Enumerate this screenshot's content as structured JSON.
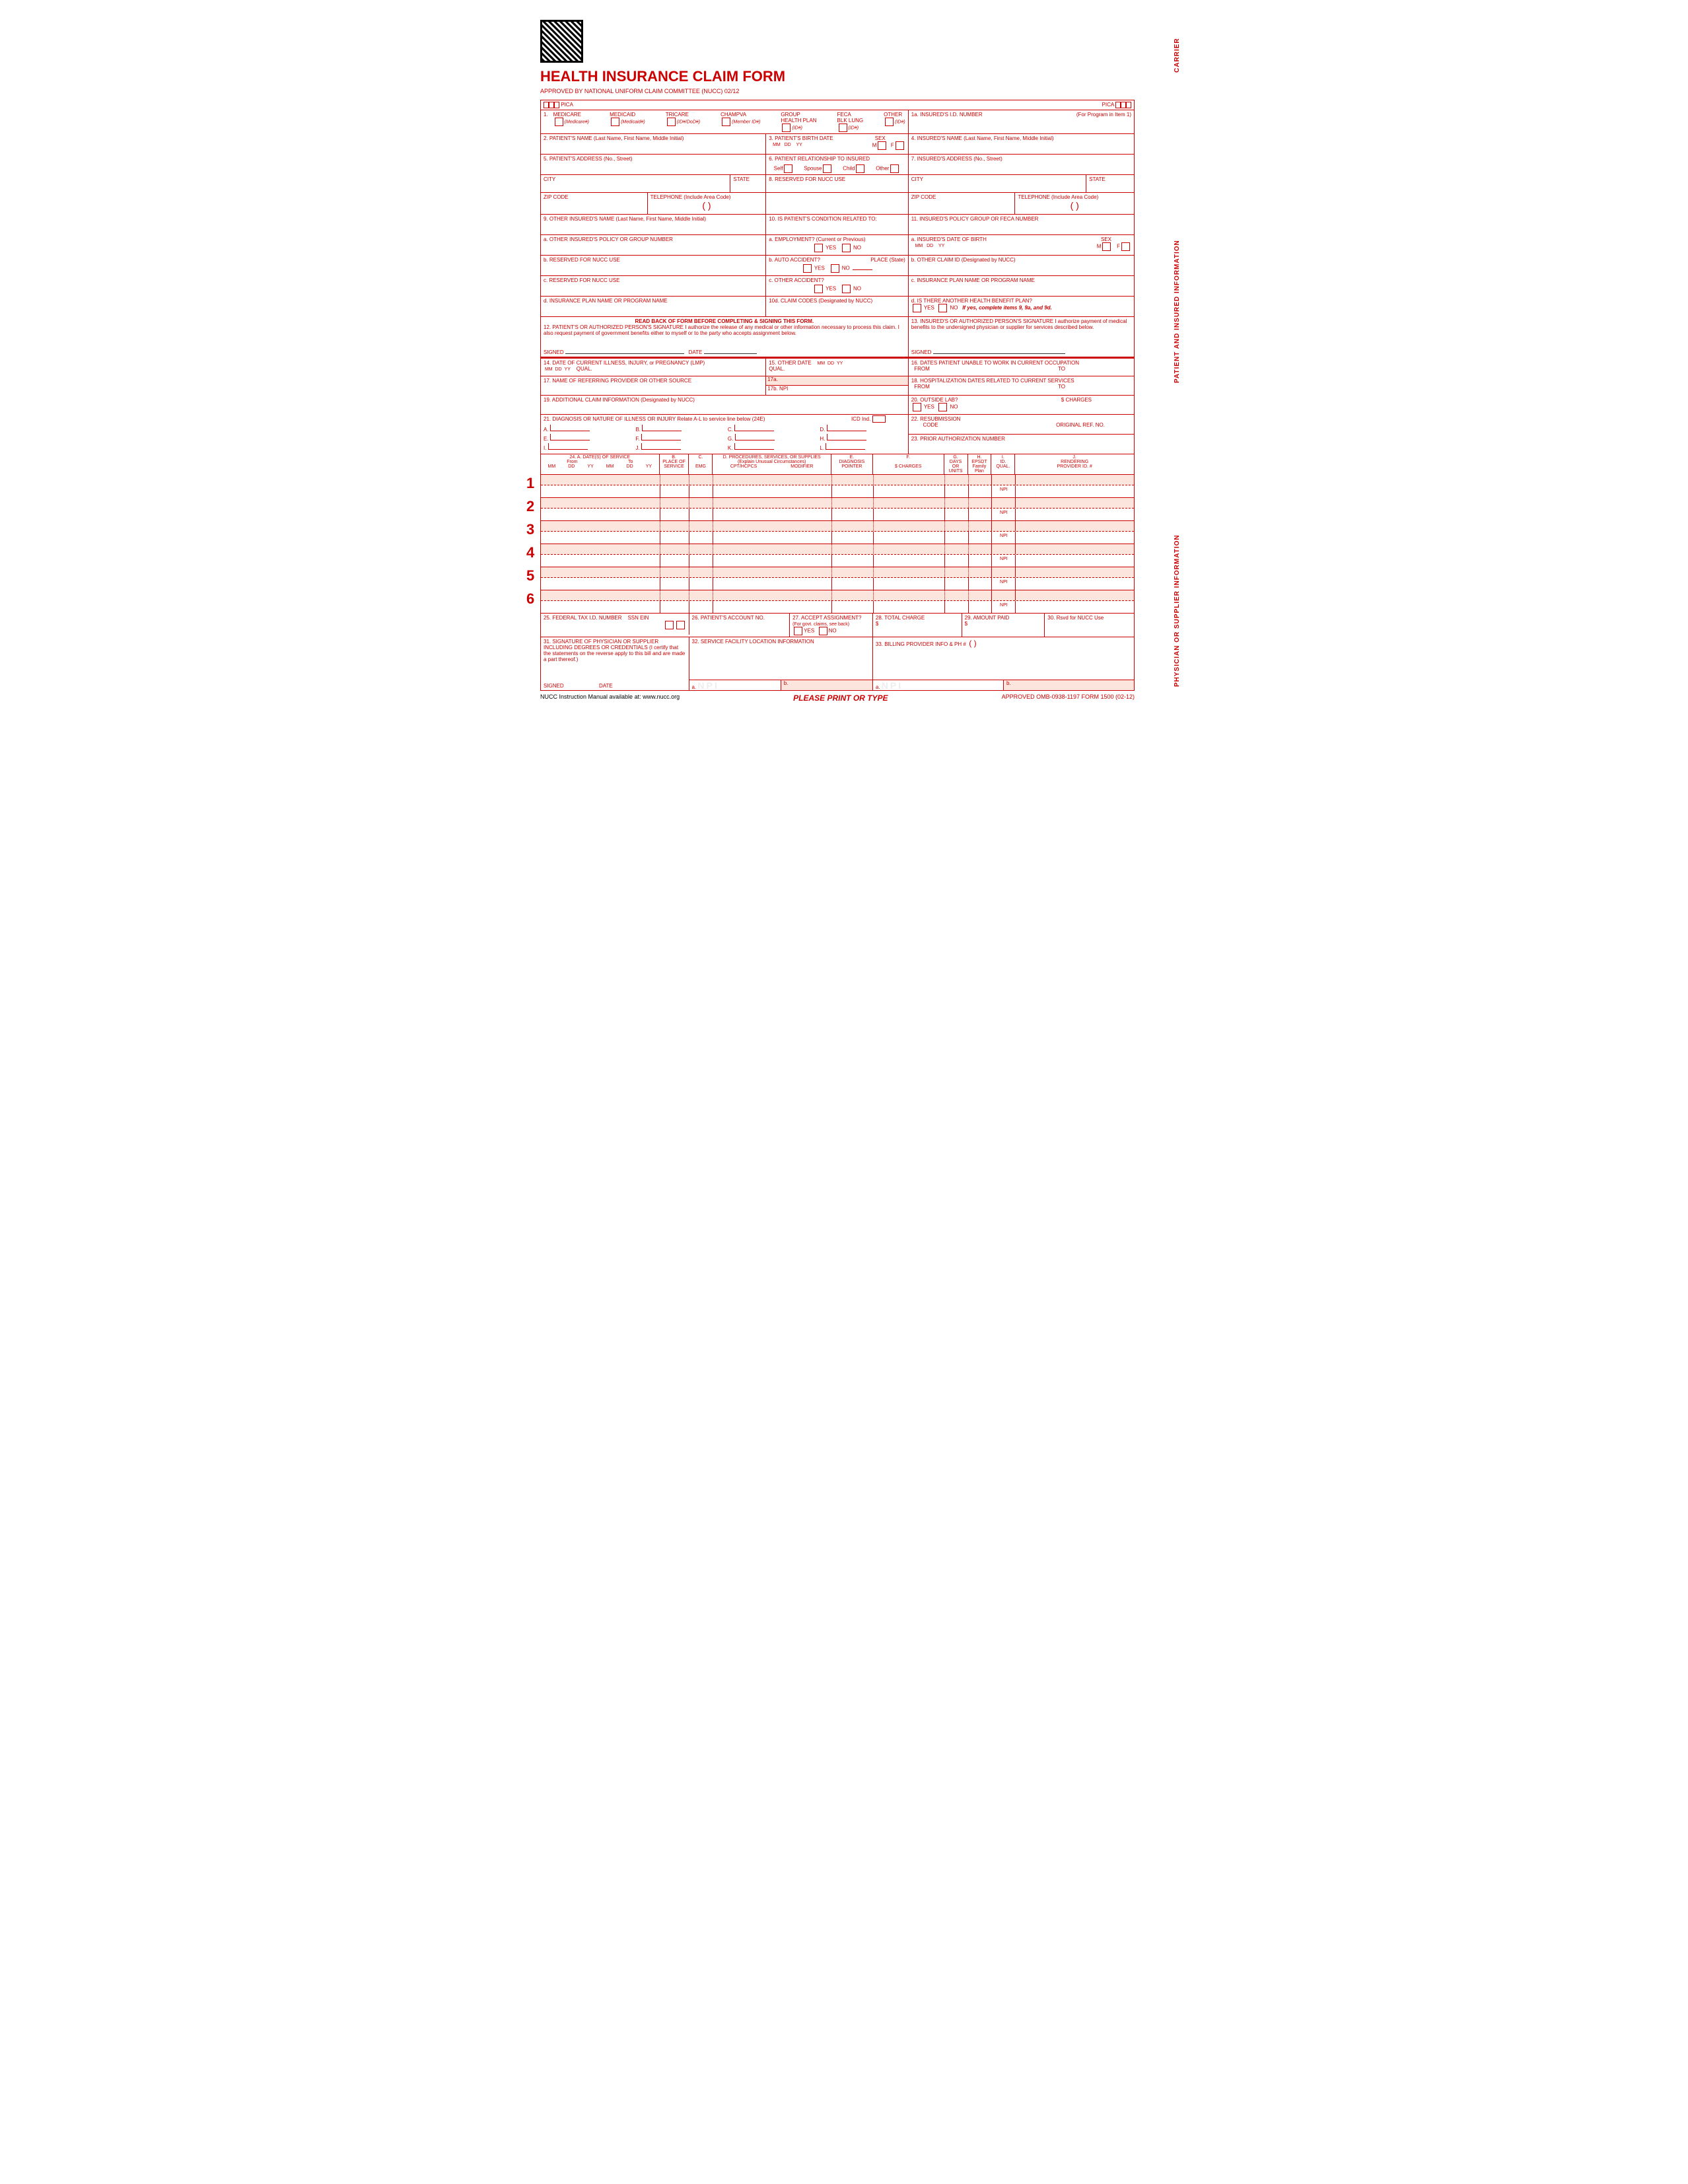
{
  "header": {
    "title": "HEALTH INSURANCE CLAIM FORM",
    "approved": "APPROVED BY NATIONAL UNIFORM CLAIM COMMITTEE (NUCC) 02/12",
    "pica": "PICA"
  },
  "sides": {
    "carrier": "CARRIER",
    "patient": "PATIENT AND INSURED INFORMATION",
    "physician": "PHYSICIAN OR SUPPLIER INFORMATION"
  },
  "box1": {
    "num": "1.",
    "medicare": "MEDICARE",
    "medicare_sub": "(Medicare#)",
    "medicaid": "MEDICAID",
    "medicaid_sub": "(Medicaid#)",
    "tricare": "TRICARE",
    "tricare_sub": "(ID#/DoD#)",
    "champva": "CHAMPVA",
    "champva_sub": "(Member ID#)",
    "group": "GROUP\nHEALTH PLAN",
    "group_sub": "(ID#)",
    "feca": "FECA\nBLK LUNG",
    "feca_sub": "(ID#)",
    "other": "OTHER",
    "other_sub": "(ID#)"
  },
  "box1a": {
    "lbl": "1a. INSURED'S I.D. NUMBER",
    "note": "(For Program in Item 1)"
  },
  "box2": "2. PATIENT'S NAME (Last Name, First Name, Middle Initial)",
  "box3": {
    "lbl": "3. PATIENT'S BIRTH DATE",
    "mm": "MM",
    "dd": "DD",
    "yy": "YY",
    "sex": "SEX",
    "m": "M",
    "f": "F"
  },
  "box4": "4. INSURED'S NAME (Last Name, First Name, Middle Initial)",
  "box5": "5. PATIENT'S ADDRESS (No., Street)",
  "box6": {
    "lbl": "6. PATIENT RELATIONSHIP TO INSURED",
    "self": "Self",
    "spouse": "Spouse",
    "child": "Child",
    "other": "Other"
  },
  "box7": "7. INSURED'S ADDRESS (No., Street)",
  "city": "CITY",
  "state": "STATE",
  "zip": "ZIP CODE",
  "phone": "TELEPHONE (Include Area Code)",
  "box8": "8. RESERVED FOR NUCC USE",
  "box9": "9. OTHER INSURED'S NAME (Last Name, First Name, Middle Initial)",
  "box9a": "a. OTHER INSURED'S POLICY OR GROUP NUMBER",
  "box9b": "b. RESERVED FOR NUCC USE",
  "box9c": "c. RESERVED FOR NUCC USE",
  "box9d": "d. INSURANCE PLAN NAME OR PROGRAM NAME",
  "box10": "10. IS PATIENT'S CONDITION RELATED TO:",
  "box10a": "a. EMPLOYMENT? (Current or Previous)",
  "box10b": "b. AUTO ACCIDENT?",
  "box10c": "c. OTHER ACCIDENT?",
  "box10d": "10d. CLAIM CODES (Designated by NUCC)",
  "place": "PLACE (State)",
  "yes": "YES",
  "no": "NO",
  "box11": "11. INSURED'S POLICY GROUP OR FECA NUMBER",
  "box11a": "a. INSURED'S DATE OF BIRTH",
  "box11b": "b. OTHER CLAIM ID (Designated by NUCC)",
  "box11c": "c. INSURANCE PLAN NAME OR PROGRAM NAME",
  "box11d": {
    "lbl": "d. IS THERE ANOTHER HEALTH BENEFIT PLAN?",
    "note": "If yes, complete items 9, 9a, and 9d."
  },
  "box12hdr": "READ BACK OF FORM BEFORE COMPLETING & SIGNING THIS FORM.",
  "box12": "12. PATIENT'S OR AUTHORIZED PERSON'S SIGNATURE  I authorize the release of any medical or other information necessary to process this claim. I also request payment of government benefits either to myself or to the party who accepts assignment below.",
  "box13": "13. INSURED'S OR AUTHORIZED PERSON'S SIGNATURE I authorize payment of medical benefits to the undersigned physician or supplier for services described below.",
  "signed": "SIGNED",
  "date": "DATE",
  "box14": "14. DATE OF CURRENT ILLNESS, INJURY, or PREGNANCY (LMP)",
  "qual": "QUAL.",
  "box15": "15. OTHER DATE",
  "box16": "16. DATES PATIENT UNABLE TO WORK IN CURRENT OCCUPATION",
  "from": "FROM",
  "to": "TO",
  "box17": "17. NAME OF REFERRING PROVIDER OR OTHER SOURCE",
  "box17a": "17a.",
  "box17b": "17b.",
  "npi": "NPI",
  "box18": "18. HOSPITALIZATION DATES RELATED TO CURRENT SERVICES",
  "box19": "19. ADDITIONAL CLAIM INFORMATION (Designated by NUCC)",
  "box20": "20. OUTSIDE LAB?",
  "charges": "$ CHARGES",
  "box21": "21. DIAGNOSIS OR NATURE OF ILLNESS OR INJURY  Relate A-L to service line below (24E)",
  "icd": "ICD Ind.",
  "dx": [
    "A.",
    "B.",
    "C.",
    "D.",
    "E.",
    "F.",
    "G.",
    "H.",
    "I.",
    "J.",
    "K.",
    "L."
  ],
  "box22": "22. RESUBMISSION\n        CODE",
  "origref": "ORIGINAL REF. NO.",
  "box23": "23. PRIOR AUTHORIZATION NUMBER",
  "box24": {
    "a": "24. A.       DATE(S) OF SERVICE",
    "from": "From",
    "to": "To",
    "b": "B.\nPLACE OF\nSERVICE",
    "c": "C.\n\nEMG",
    "d": "D.  PROCEDURES, SERVICES, OR SUPPLIES\n(Explain Unusual Circumstances)",
    "cpt": "CPT/HCPCS",
    "mod": "MODIFIER",
    "e": "E.\nDIAGNOSIS\nPOINTER",
    "f": "F.\n\n$ CHARGES",
    "g": "G.\nDAYS\nOR\nUNITS",
    "h": "H.\nEPSDT\nFamily\nPlan",
    "i": "I.\nID.\nQUAL.",
    "j": "J.\nRENDERING\nPROVIDER ID. #",
    "mm": "MM",
    "dd": "DD",
    "yy": "YY"
  },
  "box25": "25. FEDERAL TAX I.D. NUMBER",
  "ssn": "SSN",
  "ein": "EIN",
  "box26": "26. PATIENT'S ACCOUNT NO.",
  "box27": "27. ACCEPT ASSIGNMENT?",
  "box27sub": "(For govt. claims, see back)",
  "box28": "28. TOTAL CHARGE",
  "box29": "29. AMOUNT PAID",
  "box30": "30. Rsvd for NUCC Use",
  "box31": "31. SIGNATURE OF PHYSICIAN OR SUPPLIER INCLUDING DEGREES OR CREDENTIALS (I certify that the statements on the reverse apply to this bill and are made a part thereof.)",
  "box32": "32. SERVICE FACILITY LOCATION INFORMATION",
  "box33": "33. BILLING PROVIDER INFO & PH #",
  "a": "a.",
  "b": "b.",
  "dollar": "$",
  "footer": {
    "left": "NUCC Instruction Manual available at: www.nucc.org",
    "center": "PLEASE PRINT OR TYPE",
    "right": "APPROVED OMB-0938-1197 FORM 1500 (02-12)"
  },
  "paren": "(        )"
}
